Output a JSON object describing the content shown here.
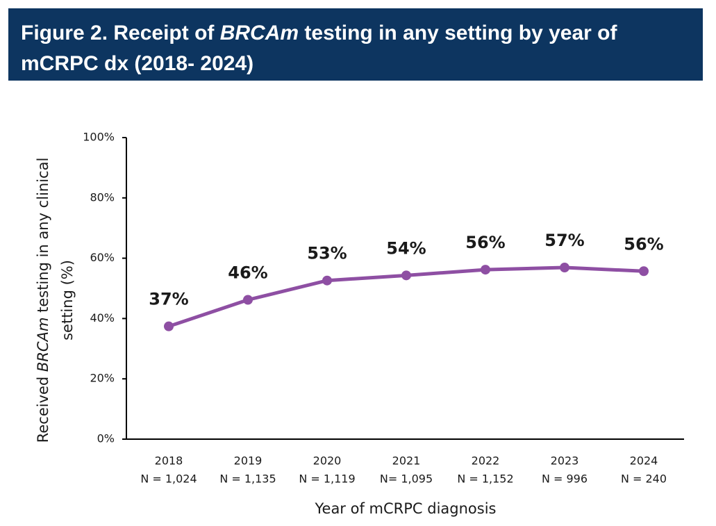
{
  "chart_data": {
    "type": "line",
    "title": [
      "Figure 2. Receipt of ",
      "BRCAm",
      " testing in any setting by year of",
      "mCRPC dx (2018- 2024)"
    ],
    "y_label": [
      "Received ",
      "BRCAm",
      " testing in any clinical",
      "setting (%)"
    ],
    "x_label": "Year of mCRPC diagnosis",
    "categories": [
      "2018",
      "2019",
      "2020",
      "2021",
      "2022",
      "2023",
      "2024"
    ],
    "category_notes": [
      "N = 1,024",
      "N = 1,135",
      "N = 1,119",
      "N= 1,095",
      "N = 1,152",
      "N = 996",
      "N = 240"
    ],
    "series": [
      {
        "color": "#8e4fa3",
        "values": [
          37.4,
          46.2,
          52.6,
          54.3,
          56.2,
          56.9,
          55.7
        ],
        "value_labels": [
          "37%",
          "46%",
          "53%",
          "54%",
          "56%",
          "57%",
          "56%"
        ]
      }
    ],
    "ylim": [
      0,
      100
    ],
    "yticks": [
      {
        "value": 0,
        "label": "0%"
      },
      {
        "value": 20,
        "label": "20%"
      },
      {
        "value": 40,
        "label": "40%"
      },
      {
        "value": 60,
        "label": "60%"
      },
      {
        "value": 80,
        "label": "80%"
      },
      {
        "value": 100,
        "label": "100%"
      }
    ]
  }
}
